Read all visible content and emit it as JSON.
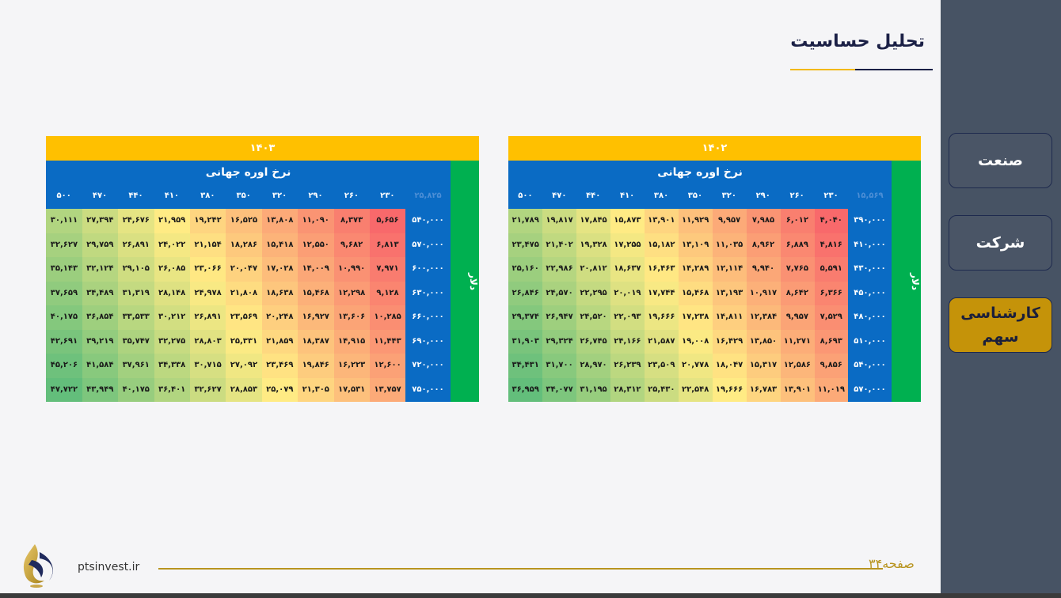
{
  "header": {
    "title": "تحلیل حساسیت"
  },
  "nav": [
    {
      "label": "صنعت"
    },
    {
      "label": "شرکت"
    },
    {
      "label": "کارشناسی سهم"
    }
  ],
  "footer": {
    "site": "ptsinvest.ir",
    "page": "صفحه۳۴"
  },
  "tables": [
    {
      "year": "۱۴۰۲",
      "subheader": "نرخ اوره جهانی",
      "side_label": "دلار",
      "base": "۱۵,۵۶۹",
      "columns": [
        "۲۳۰",
        "۲۶۰",
        "۲۹۰",
        "۳۲۰",
        "۳۵۰",
        "۳۸۰",
        "۴۱۰",
        "۴۴۰",
        "۴۷۰",
        "۵۰۰"
      ],
      "rows": [
        {
          "label": "۳۹۰,۰۰۰",
          "values": [
            "۴,۰۴۰",
            "۶,۰۱۲",
            "۷,۹۸۵",
            "۹,۹۵۷",
            "۱۱,۹۲۹",
            "۱۳,۹۰۱",
            "۱۵,۸۷۳",
            "۱۷,۸۴۵",
            "۱۹,۸۱۷",
            "۲۱,۷۸۹"
          ]
        },
        {
          "label": "۴۱۰,۰۰۰",
          "values": [
            "۴,۸۱۶",
            "۶,۸۸۹",
            "۸,۹۶۲",
            "۱۱,۰۳۵",
            "۱۳,۱۰۹",
            "۱۵,۱۸۲",
            "۱۷,۲۵۵",
            "۱۹,۳۲۸",
            "۲۱,۴۰۲",
            "۲۳,۴۷۵"
          ]
        },
        {
          "label": "۴۳۰,۰۰۰",
          "values": [
            "۵,۵۹۱",
            "۷,۷۶۵",
            "۹,۹۴۰",
            "۱۲,۱۱۴",
            "۱۴,۲۸۹",
            "۱۶,۴۶۳",
            "۱۸,۶۳۷",
            "۲۰,۸۱۲",
            "۲۲,۹۸۶",
            "۲۵,۱۶۰"
          ]
        },
        {
          "label": "۴۵۰,۰۰۰",
          "values": [
            "۶,۳۶۶",
            "۸,۶۴۲",
            "۱۰,۹۱۷",
            "۱۳,۱۹۳",
            "۱۵,۴۶۸",
            "۱۷,۷۴۴",
            "۲۰,۰۱۹",
            "۲۲,۲۹۵",
            "۲۴,۵۷۰",
            "۲۶,۸۴۶"
          ]
        },
        {
          "label": "۴۸۰,۰۰۰",
          "values": [
            "۷,۵۲۹",
            "۹,۹۵۷",
            "۱۲,۳۸۴",
            "۱۴,۸۱۱",
            "۱۷,۲۳۸",
            "۱۹,۶۶۶",
            "۲۲,۰۹۳",
            "۲۴,۵۲۰",
            "۲۶,۹۴۷",
            "۲۹,۳۷۴"
          ]
        },
        {
          "label": "۵۱۰,۰۰۰",
          "values": [
            "۸,۶۹۳",
            "۱۱,۲۷۱",
            "۱۳,۸۵۰",
            "۱۶,۴۲۹",
            "۱۹,۰۰۸",
            "۲۱,۵۸۷",
            "۲۴,۱۶۶",
            "۲۶,۷۴۵",
            "۲۹,۳۲۴",
            "۳۱,۹۰۳"
          ]
        },
        {
          "label": "۵۴۰,۰۰۰",
          "values": [
            "۹,۸۵۶",
            "۱۲,۵۸۶",
            "۱۵,۳۱۷",
            "۱۸,۰۴۷",
            "۲۰,۷۷۸",
            "۲۳,۵۰۹",
            "۲۶,۲۳۹",
            "۲۸,۹۷۰",
            "۳۱,۷۰۰",
            "۳۴,۴۳۱"
          ]
        },
        {
          "label": "۵۷۰,۰۰۰",
          "values": [
            "۱۱,۰۱۹",
            "۱۳,۹۰۱",
            "۱۶,۷۸۳",
            "۱۹,۶۶۶",
            "۲۲,۵۴۸",
            "۲۵,۴۳۰",
            "۲۸,۳۱۲",
            "۳۱,۱۹۵",
            "۳۴,۰۷۷",
            "۳۶,۹۵۹"
          ]
        }
      ]
    },
    {
      "year": "۱۴۰۳",
      "subheader": "نرخ اوره جهانی",
      "side_label": "دلار",
      "base": "۲۵,۸۲۵",
      "columns": [
        "۲۳۰",
        "۲۶۰",
        "۲۹۰",
        "۳۲۰",
        "۳۵۰",
        "۳۸۰",
        "۴۱۰",
        "۴۴۰",
        "۴۷۰",
        "۵۰۰"
      ],
      "rows": [
        {
          "label": "۵۴۰,۰۰۰",
          "values": [
            "۵,۶۵۶",
            "۸,۳۷۳",
            "۱۱,۰۹۰",
            "۱۳,۸۰۸",
            "۱۶,۵۲۵",
            "۱۹,۲۴۲",
            "۲۱,۹۵۹",
            "۲۴,۶۷۶",
            "۲۷,۳۹۴",
            "۳۰,۱۱۱"
          ]
        },
        {
          "label": "۵۷۰,۰۰۰",
          "values": [
            "۶,۸۱۳",
            "۹,۶۸۲",
            "۱۲,۵۵۰",
            "۱۵,۴۱۸",
            "۱۸,۲۸۶",
            "۲۱,۱۵۴",
            "۲۴,۰۲۲",
            "۲۶,۸۹۱",
            "۲۹,۷۵۹",
            "۳۲,۶۲۷"
          ]
        },
        {
          "label": "۶۰۰,۰۰۰",
          "values": [
            "۷,۹۷۱",
            "۱۰,۹۹۰",
            "۱۴,۰۰۹",
            "۱۷,۰۲۸",
            "۲۰,۰۴۷",
            "۲۳,۰۶۶",
            "۲۶,۰۸۵",
            "۲۹,۱۰۵",
            "۳۲,۱۲۴",
            "۳۵,۱۴۳"
          ]
        },
        {
          "label": "۶۳۰,۰۰۰",
          "values": [
            "۹,۱۲۸",
            "۱۲,۲۹۸",
            "۱۵,۴۶۸",
            "۱۸,۶۳۸",
            "۲۱,۸۰۸",
            "۲۴,۹۷۸",
            "۲۸,۱۴۸",
            "۳۱,۳۱۹",
            "۳۴,۴۸۹",
            "۳۷,۶۵۹"
          ]
        },
        {
          "label": "۶۶۰,۰۰۰",
          "values": [
            "۱۰,۲۸۵",
            "۱۳,۶۰۶",
            "۱۶,۹۲۷",
            "۲۰,۲۴۸",
            "۲۳,۵۶۹",
            "۲۶,۸۹۱",
            "۳۰,۲۱۲",
            "۳۳,۵۳۳",
            "۳۶,۸۵۴",
            "۴۰,۱۷۵"
          ]
        },
        {
          "label": "۶۹۰,۰۰۰",
          "values": [
            "۱۱,۴۴۳",
            "۱۴,۹۱۵",
            "۱۸,۳۸۷",
            "۲۱,۸۵۹",
            "۲۵,۳۳۱",
            "۲۸,۸۰۳",
            "۳۲,۲۷۵",
            "۳۵,۷۴۷",
            "۳۹,۲۱۹",
            "۴۲,۶۹۱"
          ]
        },
        {
          "label": "۷۲۰,۰۰۰",
          "values": [
            "۱۲,۶۰۰",
            "۱۶,۲۲۳",
            "۱۹,۸۴۶",
            "۲۳,۴۶۹",
            "۲۷,۰۹۲",
            "۳۰,۷۱۵",
            "۳۴,۳۳۸",
            "۳۷,۹۶۱",
            "۴۱,۵۸۴",
            "۴۵,۲۰۶"
          ]
        },
        {
          "label": "۷۵۰,۰۰۰",
          "values": [
            "۱۳,۷۵۷",
            "۱۷,۵۳۱",
            "۲۱,۳۰۵",
            "۲۵,۰۷۹",
            "۲۸,۸۵۳",
            "۳۲,۶۲۷",
            "۳۶,۴۰۱",
            "۴۰,۱۷۵",
            "۴۳,۹۴۹",
            "۴۷,۷۲۲"
          ]
        }
      ]
    }
  ]
}
